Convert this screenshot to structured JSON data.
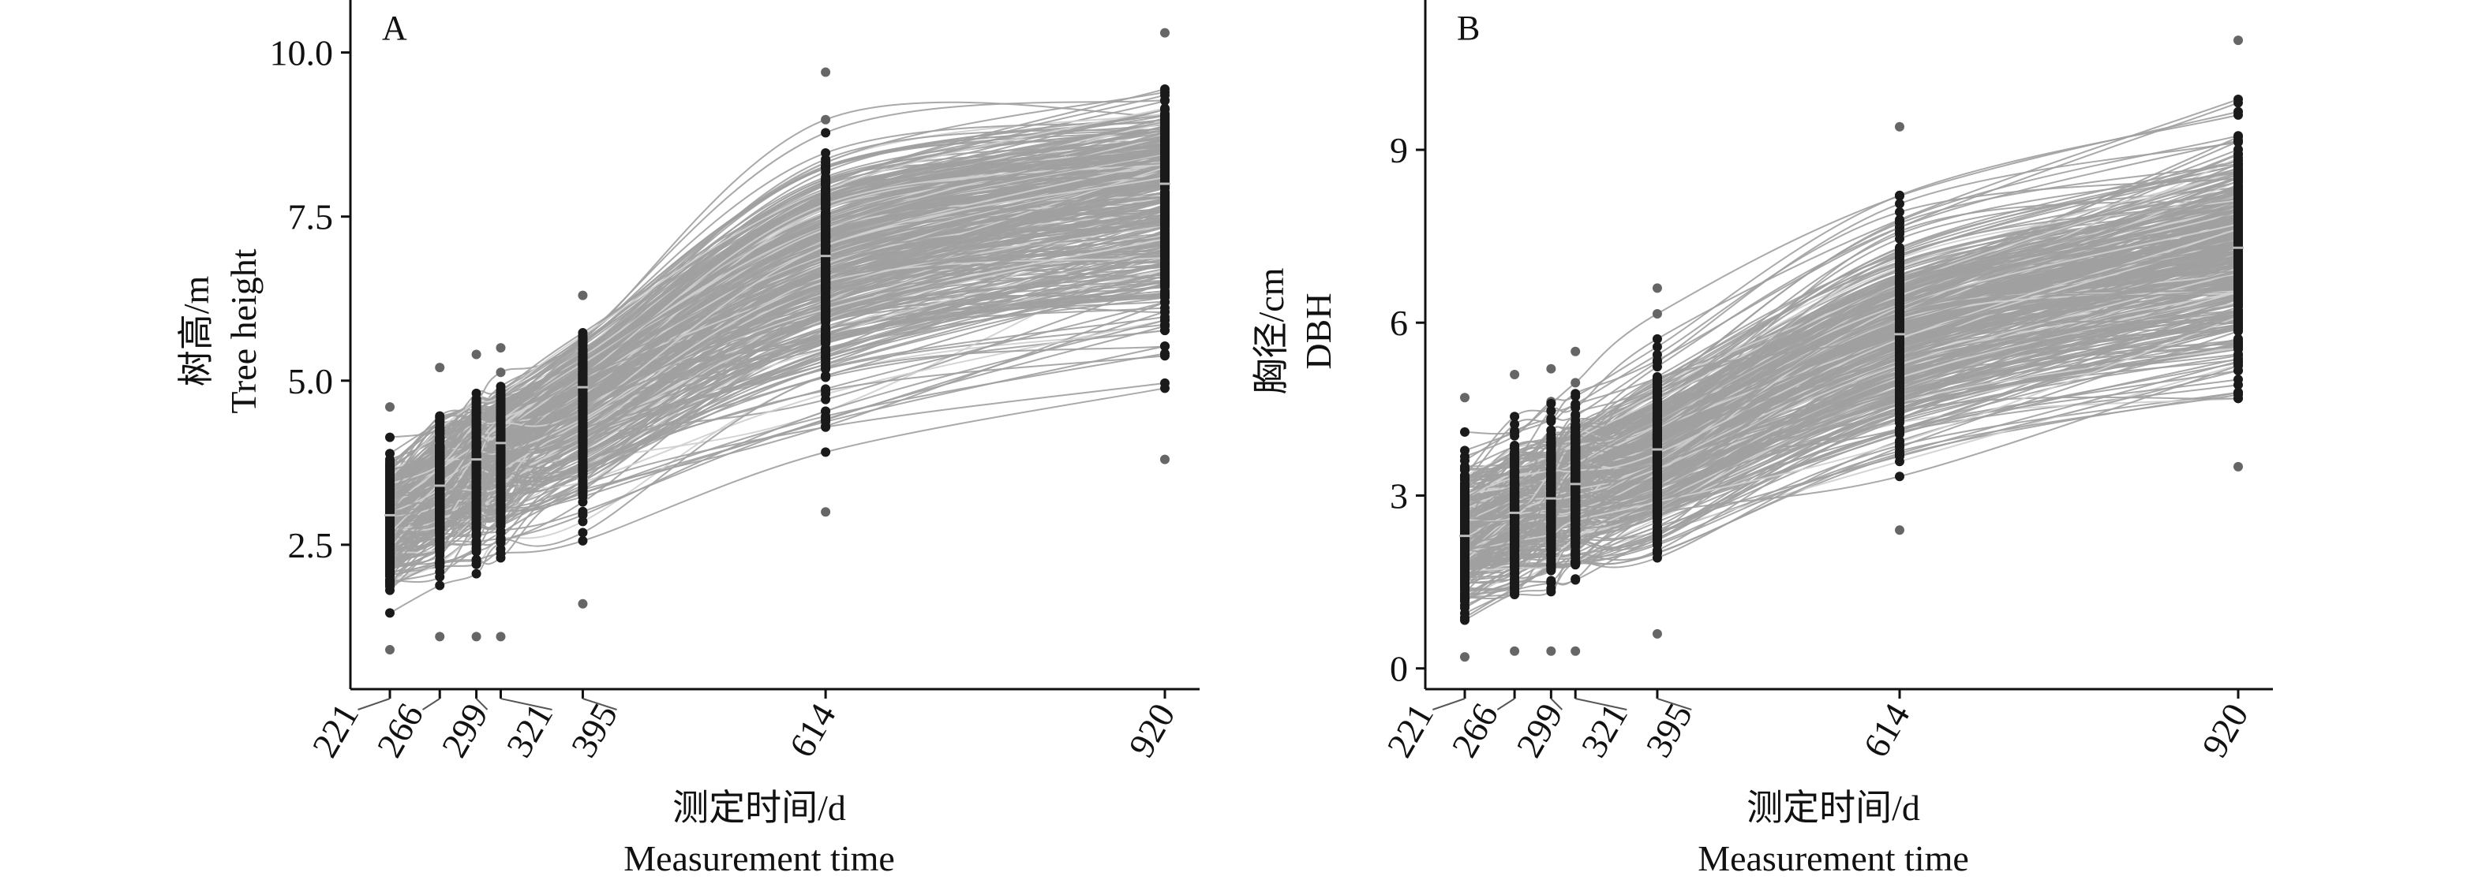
{
  "chart_data": [
    {
      "type": "line",
      "panel_label": "A",
      "xlabel": [
        "测定时间/d",
        "Measurement time"
      ],
      "ylabel": [
        "树高/m",
        "Tree height"
      ],
      "x_ticks": [
        "221",
        "266",
        "299",
        "321",
        "395",
        "614",
        "920"
      ],
      "y_ticks": [
        "2.5",
        "5.0",
        "7.5",
        "10.0"
      ],
      "x": [
        221,
        266,
        299,
        321,
        395,
        614,
        920
      ],
      "xlim": [
        190,
        960
      ],
      "ylim": [
        0.3,
        10.8
      ],
      "per_time_min": [
        0.9,
        1.1,
        1.1,
        1.1,
        1.6,
        3.0,
        3.8
      ],
      "per_time_mean": [
        2.95,
        3.4,
        3.8,
        4.05,
        4.9,
        6.9,
        8.0
      ],
      "per_time_max": [
        4.6,
        5.2,
        5.4,
        5.5,
        6.3,
        9.7,
        10.3
      ],
      "line_color": "#a0a0a0",
      "point_color": "#1a1a1a",
      "grid": false
    },
    {
      "type": "line",
      "panel_label": "B",
      "xlabel": [
        "测定时间/d",
        "Measurement time"
      ],
      "ylabel": [
        "胸径/cm",
        "DBH"
      ],
      "x_ticks": [
        "221",
        "266",
        "299",
        "321",
        "395",
        "614",
        "920"
      ],
      "y_ticks": [
        "0",
        "3",
        "6",
        "9"
      ],
      "x": [
        221,
        266,
        299,
        321,
        395,
        614,
        920
      ],
      "xlim": [
        190,
        960
      ],
      "ylim": [
        -0.36,
        11.6
      ],
      "per_time_min": [
        0.2,
        0.3,
        0.3,
        0.3,
        0.6,
        2.4,
        3.5
      ],
      "per_time_mean": [
        2.3,
        2.7,
        2.95,
        3.2,
        3.8,
        5.8,
        7.3
      ],
      "per_time_max": [
        4.7,
        5.1,
        5.2,
        5.5,
        6.6,
        9.4,
        10.9
      ],
      "line_color": "#a0a0a0",
      "point_color": "#1a1a1a",
      "grid": false
    }
  ]
}
